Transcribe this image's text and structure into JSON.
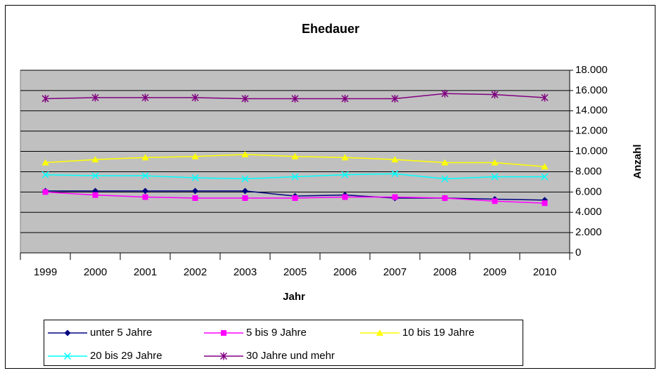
{
  "chart_data": {
    "type": "line",
    "title": "Ehedauer",
    "x_label": "Jahr",
    "y_label": "Anzahl",
    "categories": [
      "1999",
      "2000",
      "2001",
      "2002",
      "2003",
      "2005",
      "2006",
      "2007",
      "2008",
      "2009",
      "2010"
    ],
    "series": [
      {
        "name": "unter 5 Jahre",
        "color": "#000080",
        "marker": "diamond",
        "values": [
          6100,
          6100,
          6100,
          6100,
          6100,
          5600,
          5700,
          5400,
          5400,
          5300,
          5200
        ]
      },
      {
        "name": "5 bis 9 Jahre",
        "color": "#ff00ff",
        "marker": "square",
        "values": [
          6000,
          5700,
          5500,
          5400,
          5400,
          5400,
          5500,
          5500,
          5400,
          5100,
          4900
        ]
      },
      {
        "name": "10 bis 19 Jahre",
        "color": "#ffff00",
        "marker": "triangle",
        "values": [
          8900,
          9200,
          9400,
          9500,
          9700,
          9500,
          9400,
          9200,
          8900,
          8900,
          8500
        ]
      },
      {
        "name": "20 bis 29 Jahre",
        "color": "#00ffff",
        "marker": "x",
        "values": [
          7700,
          7600,
          7600,
          7400,
          7300,
          7500,
          7700,
          7800,
          7300,
          7500,
          7500
        ]
      },
      {
        "name": "30 Jahre und mehr",
        "color": "#800080",
        "marker": "asterisk",
        "values": [
          15200,
          15300,
          15300,
          15300,
          15200,
          15200,
          15200,
          15200,
          15700,
          15600,
          15300
        ]
      }
    ],
    "ylim": [
      0,
      18000
    ],
    "yticks": [
      0,
      {
        "value": 2000,
        "label": "2.000"
      },
      {
        "value": 4000,
        "label": "4.000"
      },
      {
        "value": 6000,
        "label": "6.000"
      },
      {
        "value": 8000,
        "label": "8.000"
      },
      {
        "value": 10000,
        "label": "10.000"
      },
      {
        "value": 12000,
        "label": "12.000"
      },
      {
        "value": 14000,
        "label": "14.000"
      },
      {
        "value": 16000,
        "label": "16.000"
      },
      {
        "value": 18000,
        "label": "18.000"
      }
    ],
    "grid": true,
    "y_axis_side": "right",
    "legend": "bottom",
    "plot_background": "#c0c0c0"
  }
}
